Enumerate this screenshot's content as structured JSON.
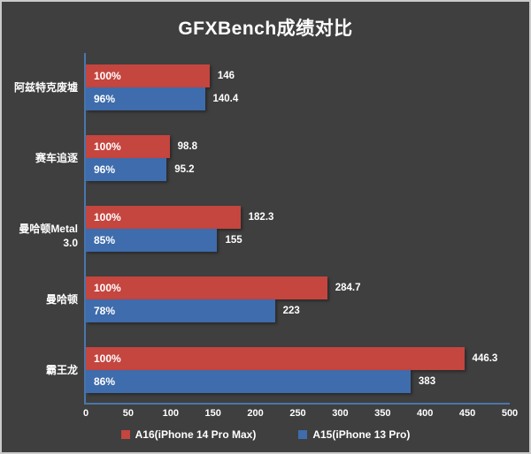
{
  "title": "GFXBench成绩对比",
  "colors": {
    "background": "#3f3f3f",
    "border": "#cbcbcb",
    "axis_line": "#4a77ad",
    "text": "#ffffff",
    "series_a16": "#c5453f",
    "series_a15": "#3e6cac"
  },
  "chart_data": {
    "type": "bar",
    "orientation": "horizontal",
    "title": "GFXBench成绩对比",
    "categories": [
      "阿兹特克废墟",
      "赛车追逐",
      "曼哈顿Metal 3.0",
      "曼哈顿",
      "霸王龙"
    ],
    "series": [
      {
        "name": "A16(iPhone 14 Pro Max)",
        "color": "#c5453f",
        "values": [
          146,
          98.8,
          182.3,
          284.7,
          446.3
        ],
        "value_labels": [
          "146",
          "98.8",
          "182.3",
          "284.7",
          "446.3"
        ],
        "percent_labels": [
          "100%",
          "100%",
          "100%",
          "100%",
          "100%"
        ]
      },
      {
        "name": "A15(iPhone 13 Pro)",
        "color": "#3e6cac",
        "values": [
          140.4,
          95.2,
          155,
          223,
          383
        ],
        "value_labels": [
          "140.4",
          "95.2",
          "155",
          "223",
          "383"
        ],
        "percent_labels": [
          "96%",
          "96%",
          "85%",
          "78%",
          "86%"
        ]
      }
    ],
    "xlim": [
      0,
      500
    ],
    "x_ticks": [
      0,
      50,
      100,
      150,
      200,
      250,
      300,
      350,
      400,
      450,
      500
    ],
    "grid": false,
    "legend_position": "bottom"
  }
}
